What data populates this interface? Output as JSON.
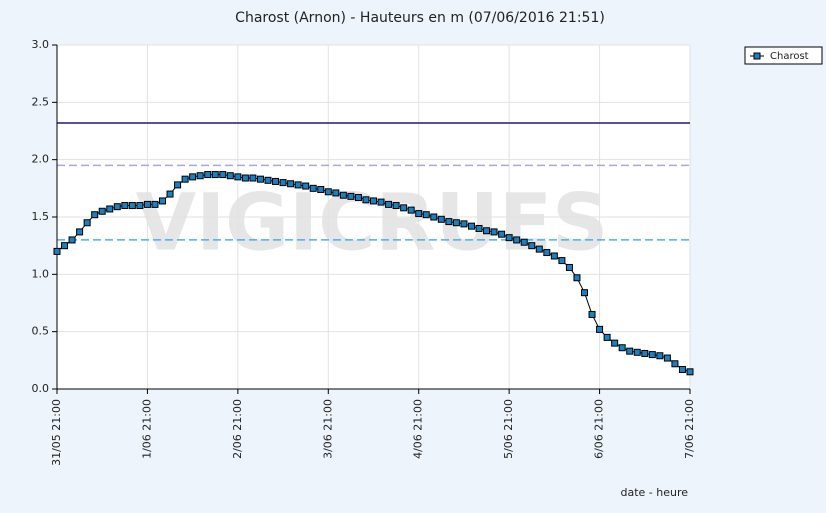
{
  "chart_data": {
    "type": "line",
    "title": "Charost (Arnon) - Hauteurs en m (07/06/2016 21:51)",
    "watermark": "VIGICRUES",
    "x_label": "date - heure",
    "x": [
      "31/05 21:00",
      "31/05 23:00",
      "1/06 01:00",
      "1/06 03:00",
      "1/06 05:00",
      "1/06 07:00",
      "1/06 09:00",
      "1/06 11:00",
      "1/06 13:00",
      "1/06 15:00",
      "1/06 17:00",
      "1/06 19:00",
      "1/06 21:00",
      "1/06 23:00",
      "2/06 01:00",
      "2/06 03:00",
      "2/06 05:00",
      "2/06 07:00",
      "2/06 09:00",
      "2/06 11:00",
      "2/06 13:00",
      "2/06 15:00",
      "2/06 17:00",
      "2/06 19:00",
      "2/06 21:00",
      "2/06 23:00",
      "3/06 01:00",
      "3/06 03:00",
      "3/06 05:00",
      "3/06 07:00",
      "3/06 09:00",
      "3/06 11:00",
      "3/06 13:00",
      "3/06 15:00",
      "3/06 17:00",
      "3/06 19:00",
      "3/06 21:00",
      "3/06 23:00",
      "4/06 01:00",
      "4/06 03:00",
      "4/06 05:00",
      "4/06 07:00",
      "4/06 09:00",
      "4/06 11:00",
      "4/06 13:00",
      "4/06 15:00",
      "4/06 17:00",
      "4/06 19:00",
      "4/06 21:00",
      "4/06 23:00",
      "5/06 01:00",
      "5/06 03:00",
      "5/06 05:00",
      "5/06 07:00",
      "5/06 09:00",
      "5/06 11:00",
      "5/06 13:00",
      "5/06 15:00",
      "5/06 17:00",
      "5/06 19:00",
      "5/06 21:00",
      "5/06 23:00",
      "6/06 01:00",
      "6/06 03:00",
      "6/06 05:00",
      "6/06 07:00",
      "6/06 09:00",
      "6/06 11:00",
      "6/06 13:00",
      "6/06 15:00",
      "6/06 17:00",
      "6/06 19:00",
      "6/06 21:00",
      "6/06 23:00",
      "7/06 01:00",
      "7/06 03:00",
      "7/06 05:00",
      "7/06 07:00",
      "7/06 09:00",
      "7/06 11:00",
      "7/06 13:00",
      "7/06 15:00",
      "7/06 17:00",
      "7/06 19:00",
      "7/06 21:00"
    ],
    "series": [
      {
        "name": "Charost",
        "color": "#1e7fc0",
        "values": [
          1.2,
          1.25,
          1.3,
          1.37,
          1.45,
          1.52,
          1.55,
          1.57,
          1.59,
          1.6,
          1.6,
          1.6,
          1.61,
          1.61,
          1.64,
          1.7,
          1.78,
          1.83,
          1.85,
          1.86,
          1.87,
          1.87,
          1.87,
          1.86,
          1.85,
          1.84,
          1.84,
          1.83,
          1.82,
          1.81,
          1.8,
          1.79,
          1.78,
          1.77,
          1.75,
          1.74,
          1.72,
          1.71,
          1.69,
          1.68,
          1.67,
          1.65,
          1.64,
          1.63,
          1.61,
          1.6,
          1.58,
          1.56,
          1.53,
          1.52,
          1.5,
          1.48,
          1.46,
          1.45,
          1.44,
          1.42,
          1.4,
          1.38,
          1.37,
          1.35,
          1.32,
          1.3,
          1.28,
          1.25,
          1.22,
          1.19,
          1.16,
          1.12,
          1.06,
          0.97,
          0.84,
          0.65,
          0.52,
          0.45,
          0.4,
          0.36,
          0.33,
          0.32,
          0.31,
          0.3,
          0.29,
          0.27,
          0.22,
          0.17,
          0.15
        ]
      }
    ],
    "reference_lines": [
      {
        "value": 2.32,
        "color": "#1c1c78",
        "style": "solid"
      },
      {
        "value": 1.95,
        "color": "#a8a8e0",
        "style": "dashed"
      },
      {
        "value": 1.3,
        "color": "#4ab0e8",
        "style": "dashed"
      }
    ],
    "xticks": [
      "31/05 21:00",
      "1/06 21:00",
      "2/06 21:00",
      "3/06 21:00",
      "4/06 21:00",
      "5/06 21:00",
      "6/06 21:00",
      "7/06 21:00"
    ],
    "ylim": [
      0,
      3
    ],
    "yticks": [
      {
        "value": 0,
        "label": "0.0"
      },
      0.5,
      {
        "value": 1,
        "label": "1.0"
      },
      1.5,
      {
        "value": 2,
        "label": "2.0"
      },
      2.5,
      {
        "value": 3,
        "label": "3.0"
      }
    ],
    "grid": true,
    "legend": "top-right"
  }
}
